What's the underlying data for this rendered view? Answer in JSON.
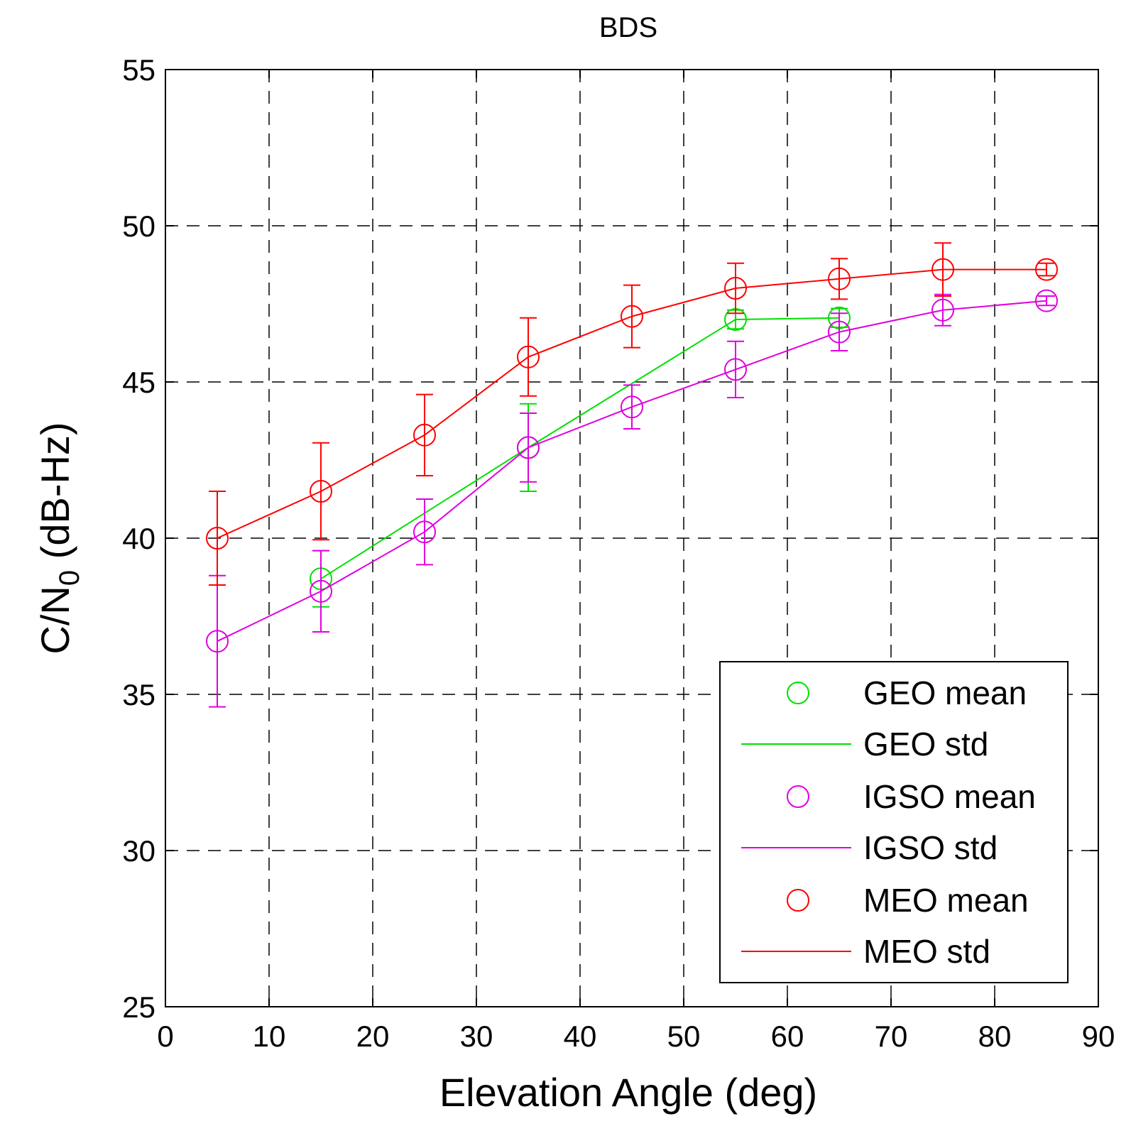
{
  "chart_data": {
    "type": "line",
    "title": "BDS",
    "xlabel": "Elevation Angle (deg)",
    "ylabel_main": "C/N",
    "ylabel_sub": "0",
    "ylabel_suffix": " (dB-Hz)",
    "xlim": [
      0,
      90
    ],
    "ylim": [
      25,
      55
    ],
    "xticks": [
      0,
      10,
      20,
      30,
      40,
      50,
      60,
      70,
      80,
      90
    ],
    "yticks": [
      25,
      30,
      35,
      40,
      45,
      50,
      55
    ],
    "grid": true,
    "legend_position": "bottom-right",
    "series": [
      {
        "name": "GEO",
        "color": "#00e000",
        "x": [
          15,
          35,
          55,
          65
        ],
        "mean": [
          38.7,
          42.9,
          47.0,
          47.05
        ],
        "std": [
          0.9,
          1.4,
          0.3,
          0.3
        ]
      },
      {
        "name": "IGSO",
        "color": "#e000e0",
        "x": [
          5,
          15,
          25,
          35,
          45,
          55,
          65,
          75,
          85
        ],
        "mean": [
          36.7,
          38.3,
          40.2,
          42.9,
          44.2,
          45.4,
          46.6,
          47.3,
          47.6
        ],
        "std": [
          2.1,
          1.3,
          1.05,
          1.1,
          0.7,
          0.9,
          0.6,
          0.5,
          0.15
        ]
      },
      {
        "name": "MEO",
        "color": "#ff0000",
        "x": [
          5,
          15,
          25,
          35,
          45,
          55,
          65,
          75,
          85
        ],
        "mean": [
          40.0,
          41.5,
          43.3,
          45.8,
          47.1,
          48.0,
          48.3,
          48.6,
          48.6
        ],
        "std": [
          1.5,
          1.55,
          1.3,
          1.25,
          1.0,
          0.8,
          0.65,
          0.85,
          0.2
        ]
      }
    ],
    "legend": [
      "GEO mean",
      "GEO std",
      "IGSO mean",
      "IGSO std",
      "MEO mean",
      "MEO std"
    ]
  }
}
